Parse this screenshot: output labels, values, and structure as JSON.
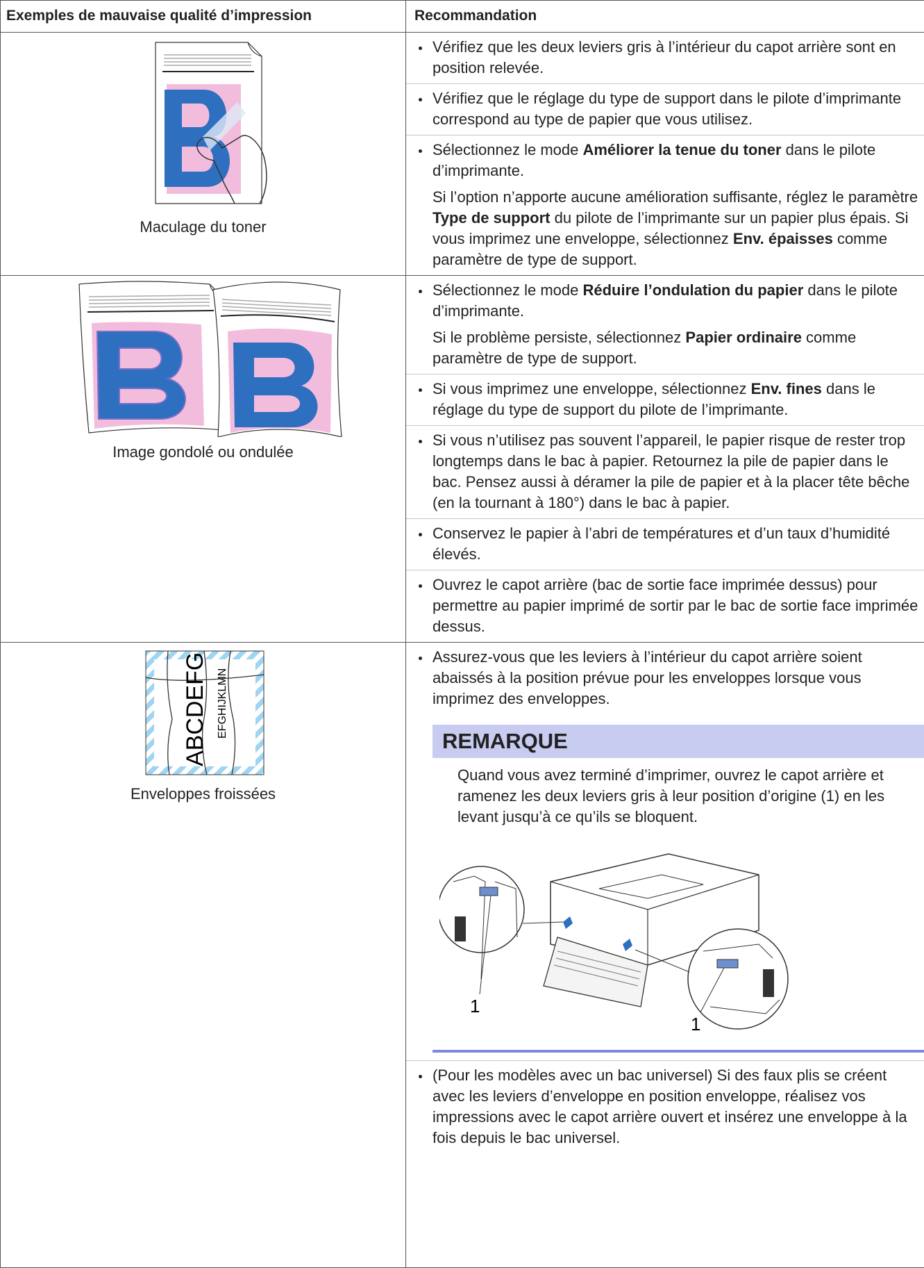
{
  "table": {
    "header": [
      "Exemples de mauvaise qualité d’impression",
      "Recommandation"
    ],
    "rows": [
      {
        "caption": "Maculage du toner",
        "items": [
          {
            "paragraphs": [
              [
                "Vérifiez que les deux leviers gris à l’intérieur du capot arrière sont en position relevée."
              ]
            ]
          },
          {
            "paragraphs": [
              [
                "Vérifiez que le réglage du type de support dans le pilote d’imprimante correspond au type de papier que vous utilisez."
              ]
            ]
          },
          {
            "paragraphs": [
              [
                "Sélectionnez le mode ",
                {
                  "bold": "Améliorer la tenue du toner"
                },
                " dans le pilote d’imprimante."
              ],
              [
                "Si l’option n’apporte aucune amélioration suffisante, réglez le paramètre ",
                {
                  "bold": "Type de support"
                },
                " du pilote de l’imprimante sur un papier plus épais. Si vous imprimez une enveloppe, sélectionnez ",
                {
                  "bold": "Env. épaisses"
                },
                " comme paramètre de type de support."
              ]
            ]
          }
        ]
      },
      {
        "caption": "Image gondolé ou ondulée",
        "items": [
          {
            "paragraphs": [
              [
                "Sélectionnez le mode ",
                {
                  "bold": "Réduire l’ondulation du papier"
                },
                " dans le pilote d’imprimante."
              ],
              [
                "Si le problème persiste, sélectionnez ",
                {
                  "bold": "Papier ordinaire"
                },
                " comme paramètre de type de support."
              ]
            ]
          },
          {
            "paragraphs": [
              [
                "Si vous imprimez une enveloppe, sélectionnez ",
                {
                  "bold": "Env. fines"
                },
                " dans le réglage du type de support du pilote de l’imprimante."
              ]
            ]
          },
          {
            "paragraphs": [
              [
                "Si vous n’utilisez pas souvent l’appareil, le papier risque de rester trop longtemps dans le bac à papier. Retournez la pile de papier dans le bac. Pensez aussi à déramer la pile de papier et à la placer tête bêche (en la tournant à 180°) dans le bac à papier."
              ]
            ]
          },
          {
            "paragraphs": [
              [
                "Conservez le papier à l’abri de températures et d’un taux d’humidité élevés."
              ]
            ]
          },
          {
            "paragraphs": [
              [
                "Ouvrez le capot arrière (bac de sortie face imprimée dessus) pour permettre au papier imprimé de sortir par le bac de sortie face imprimée dessus."
              ]
            ]
          }
        ]
      },
      {
        "caption": "Enveloppes froissées",
        "illustration_text": [
          "ABCDEFG",
          "EFGHIJKLMN"
        ],
        "items": [
          {
            "paragraphs": [
              [
                "Assurez-vous que les leviers à l’intérieur du capot arrière soient abaissés à la position prévue pour les enveloppes lorsque vous imprimez des enveloppes."
              ]
            ],
            "note": {
              "title": "REMARQUE",
              "text": "Quand vous avez terminé d’imprimer, ouvrez le capot arrière et ramenez les deux leviers gris à leur position d’origine (1) en les levant jusqu’à ce qu’ils se bloquent.",
              "callouts": [
                "1",
                "1"
              ]
            }
          },
          {
            "paragraphs": [
              [
                "(Pour les modèles avec un bac universel) Si des faux plis se créent avec les leviers d’enveloppe en position enveloppe, réalisez vos impressions avec le capot arrière ouvert et insérez une enveloppe à la fois depuis le bac universel."
              ]
            ]
          }
        ]
      }
    ]
  }
}
